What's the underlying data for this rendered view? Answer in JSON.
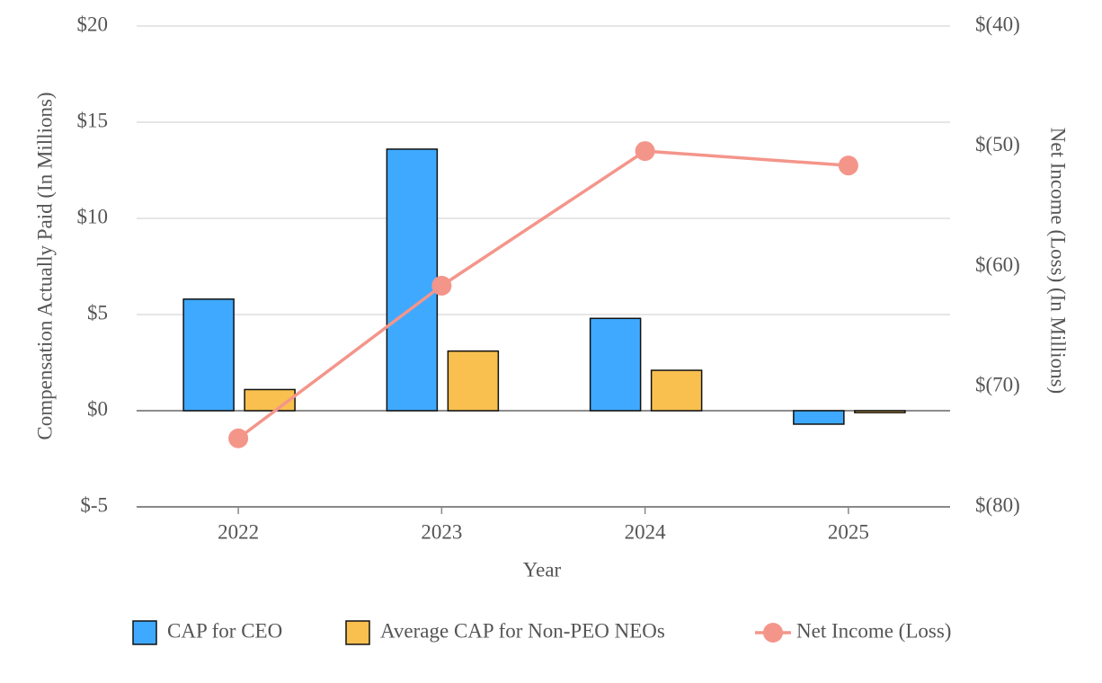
{
  "chart_data": {
    "type": "bar-line",
    "x_label": "Year",
    "y_label": "Compensation Actually Paid (In Millions)",
    "y2_label": "Net Income (Loss) (In Millions)",
    "categories": [
      "2022",
      "2023",
      "2024",
      "2025"
    ],
    "series": [
      {
        "name": "CAP for CEO",
        "type": "bar",
        "color": "#3fa9ff",
        "values": [
          5.8,
          13.6,
          4.8,
          -0.7
        ]
      },
      {
        "name": "Average CAP for Non-PEO NEOs",
        "type": "bar",
        "color": "#f9c04f",
        "values": [
          1.1,
          3.1,
          2.1,
          -0.1
        ]
      },
      {
        "name": "Net Income (Loss)",
        "type": "line",
        "axis": "y2",
        "color": "#f4958a",
        "values": [
          -74.3,
          -61.6,
          -50.4,
          -51.6
        ]
      }
    ],
    "ylim": [
      -5,
      20
    ],
    "yticks": [
      {
        "value": -5,
        "label": "$-5"
      },
      {
        "value": 0,
        "label": "$0"
      },
      {
        "value": 5,
        "label": "$5"
      },
      {
        "value": 10,
        "label": "$10"
      },
      {
        "value": 15,
        "label": "$15"
      },
      {
        "value": 20,
        "label": "$20"
      }
    ],
    "y2lim": [
      -80,
      -40
    ],
    "y2ticks": [
      {
        "value": -80,
        "label": "$(80)"
      },
      {
        "value": -70,
        "label": "$(70)"
      },
      {
        "value": -60,
        "label": "$(60)"
      },
      {
        "value": -50,
        "label": "$(50)"
      },
      {
        "value": -40,
        "label": "$(40)"
      }
    ],
    "grid": true,
    "legend": "bottom"
  }
}
